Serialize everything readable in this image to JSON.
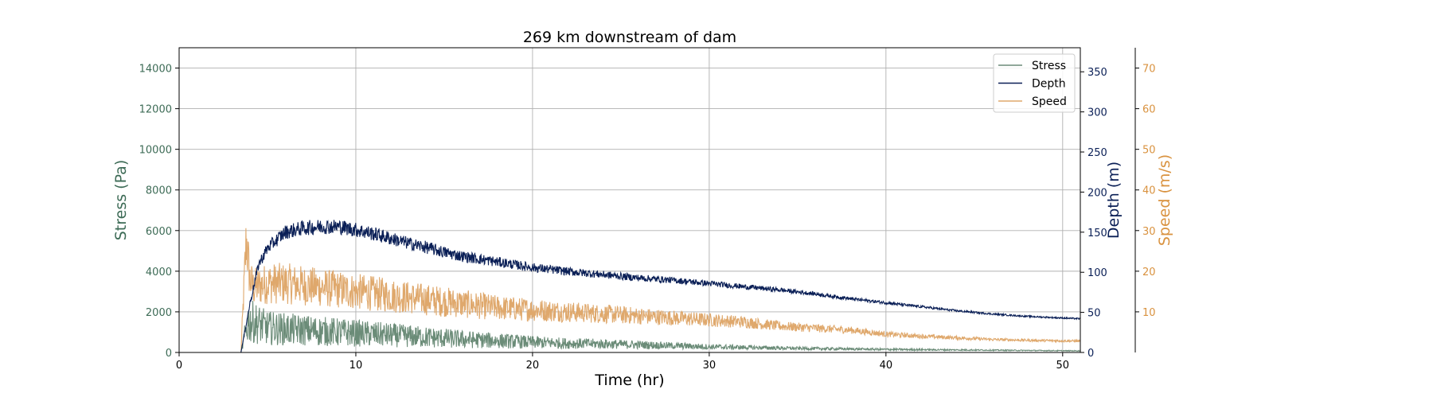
{
  "chart_data": {
    "type": "line",
    "title": "269 km downstream of dam",
    "xlabel": "Time (hr)",
    "xlim": [
      0,
      51
    ],
    "xticks": [
      0,
      10,
      20,
      30,
      40,
      50
    ],
    "grid": true,
    "legend_position": "top-right",
    "axes": [
      {
        "id": "stress",
        "label": "Stress (Pa)",
        "color": "#3d6b56",
        "side": "left",
        "ylim": [
          0,
          15000
        ],
        "ticks": [
          0,
          2000,
          4000,
          6000,
          8000,
          10000,
          12000,
          14000
        ]
      },
      {
        "id": "depth",
        "label": "Depth (m)",
        "color": "#0a1f56",
        "side": "right",
        "ylim": [
          0,
          380
        ],
        "ticks": [
          0,
          50,
          100,
          150,
          200,
          250,
          300,
          350
        ]
      },
      {
        "id": "speed",
        "label": "Speed (m/s)",
        "color": "#d9923f",
        "side": "right-outer",
        "ylim": [
          0,
          75
        ],
        "ticks": [
          10,
          20,
          30,
          40,
          50,
          60,
          70
        ]
      }
    ],
    "series": [
      {
        "name": "Stress",
        "axis": "stress",
        "color": "#6b8c78",
        "noise": 0.7,
        "x": [
          0,
          3.5,
          3.9,
          4.2,
          5,
          6,
          7,
          8,
          9,
          10,
          11,
          12,
          14,
          16,
          18,
          20,
          22,
          24,
          26,
          28,
          30,
          32,
          35,
          40,
          45,
          51
        ],
        "y": [
          0,
          0,
          1500,
          1500,
          1200,
          1150,
          1100,
          1050,
          1000,
          950,
          900,
          850,
          750,
          650,
          580,
          500,
          450,
          420,
          380,
          330,
          280,
          250,
          200,
          150,
          120,
          80
        ]
      },
      {
        "name": "Depth",
        "axis": "depth",
        "color": "#0a1f56",
        "noise": 0.06,
        "x": [
          0,
          3.5,
          4.0,
          4.5,
          5,
          6,
          7,
          8,
          9,
          10,
          11,
          12,
          13,
          14,
          15,
          16,
          18,
          20,
          22,
          24,
          26,
          28,
          30,
          32,
          34,
          36,
          38,
          40,
          42,
          44,
          46,
          48,
          51
        ],
        "y": [
          0,
          0,
          60,
          110,
          130,
          150,
          155,
          157,
          157,
          153,
          148,
          142,
          136,
          131,
          125,
          120,
          113,
          106,
          101,
          97,
          93,
          90,
          86,
          82,
          78,
          73,
          67,
          62,
          57,
          52,
          48,
          45,
          42
        ]
      },
      {
        "name": "Speed",
        "axis": "speed",
        "color": "#dfa86c",
        "noise": 0.3,
        "x": [
          0,
          3.5,
          3.8,
          4.0,
          4.2,
          5,
          6,
          7,
          8,
          9,
          10,
          11,
          12,
          14,
          16,
          18,
          20,
          22,
          24,
          26,
          28,
          30,
          32,
          34,
          36,
          38,
          40,
          42,
          44,
          46,
          48,
          51
        ],
        "y": [
          0,
          0,
          28,
          18,
          16,
          17,
          17,
          16.5,
          16,
          15.5,
          15,
          14.5,
          14,
          13,
          12,
          11,
          10.5,
          10,
          9.5,
          9,
          8.5,
          8,
          7.5,
          6.5,
          6,
          5.5,
          4.5,
          4,
          3.6,
          3.2,
          3,
          2.8
        ]
      }
    ]
  }
}
